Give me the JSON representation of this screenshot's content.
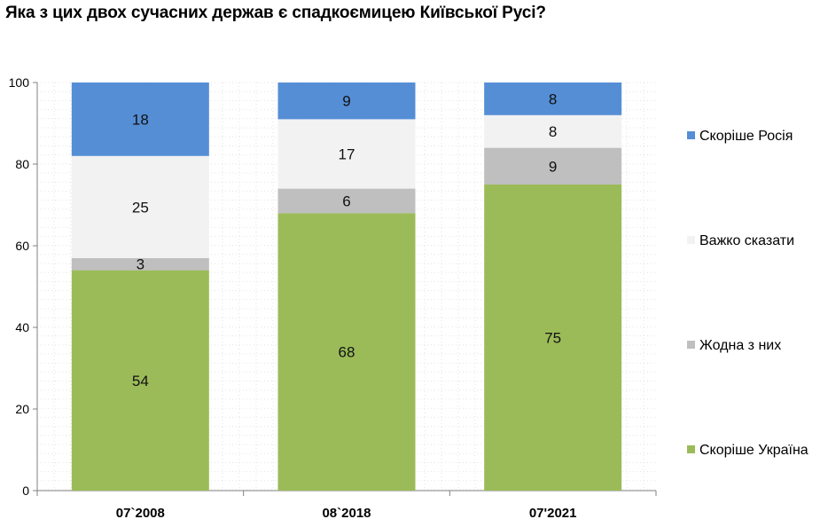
{
  "chart_data": {
    "type": "bar",
    "stacked": true,
    "title": "Яка з цих двох сучасних держав є спадкоємицею Київської Русі?",
    "categories": [
      "07`2008",
      "08`2018",
      "07'2021"
    ],
    "series": [
      {
        "name": "Скоріше Україна",
        "color": "#9bbb59",
        "values": [
          54,
          68,
          75
        ]
      },
      {
        "name": "Жодна з них",
        "color": "#bfbfbf",
        "values": [
          3,
          6,
          9
        ]
      },
      {
        "name": "Важко сказати",
        "color": "#f2f2f2",
        "values": [
          25,
          17,
          8
        ]
      },
      {
        "name": "Скоріше Росія",
        "color": "#558ed5",
        "values": [
          18,
          9,
          8
        ]
      }
    ],
    "ylim": [
      0,
      100
    ],
    "yticks": [
      "0",
      "20",
      "40",
      "60",
      "80",
      "100"
    ],
    "grid": true,
    "legend": "right"
  }
}
